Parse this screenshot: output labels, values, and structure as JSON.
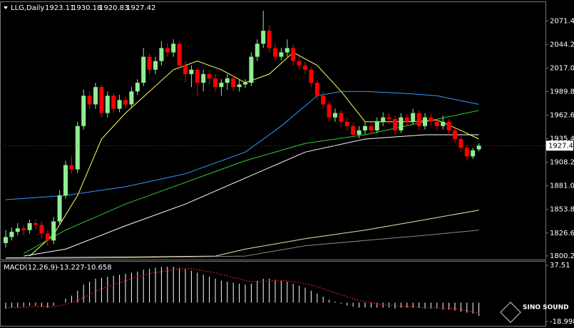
{
  "chart_data": [
    {
      "type": "candlestick",
      "title": "LLG,Daily",
      "up_color": "#90ee90",
      "down_color": "#ff0000",
      "open": [
        1815,
        1822,
        1828,
        1832,
        1830,
        1838,
        1836,
        1826,
        1818,
        1840,
        1870,
        1905,
        1900,
        1950,
        1985,
        1975,
        1995,
        1965,
        1985,
        1970,
        1980,
        1975,
        1990,
        2000,
        2030,
        2015,
        2025,
        2040,
        2035,
        2045,
        2020,
        2010,
        2015,
        2000,
        2010,
        2005,
        1995,
        2000,
        2005,
        1995,
        1998,
        2000,
        2030,
        2045,
        2060,
        2040,
        2030,
        2035,
        2040,
        2025,
        2020,
        2015,
        2000,
        1985,
        1975,
        1960,
        1965,
        1955,
        1950,
        1940,
        1945,
        1950,
        1945,
        1955,
        1960,
        1958,
        1945,
        1960,
        1955,
        1965,
        1950,
        1960,
        1955,
        1950,
        1955,
        1945,
        1935,
        1925,
        1915,
        1923.11
      ],
      "high": [
        1830,
        1833,
        1838,
        1836,
        1842,
        1842,
        1840,
        1830,
        1845,
        1876,
        1910,
        1915,
        1955,
        1992,
        1990,
        2000,
        1998,
        1990,
        1988,
        1986,
        1984,
        1995,
        2004,
        2040,
        2034,
        2030,
        2048,
        2046,
        2050,
        2048,
        2025,
        2020,
        2018,
        2015,
        2014,
        2010,
        2004,
        2010,
        2008,
        2004,
        2004,
        2035,
        2050,
        2083,
        2066,
        2045,
        2040,
        2050,
        2044,
        2030,
        2024,
        2018,
        2004,
        1990,
        1978,
        1970,
        1968,
        1960,
        1954,
        1950,
        1955,
        1954,
        1960,
        1966,
        1965,
        1962,
        1965,
        1964,
        1970,
        1968,
        1965,
        1964,
        1958,
        1962,
        1958,
        1948,
        1938,
        1928,
        1925,
        1930.18
      ],
      "low": [
        1810,
        1818,
        1824,
        1824,
        1826,
        1830,
        1820,
        1812,
        1814,
        1836,
        1866,
        1895,
        1896,
        1946,
        1970,
        1970,
        1960,
        1960,
        1965,
        1966,
        1970,
        1972,
        1986,
        1996,
        2010,
        2010,
        2020,
        2030,
        2030,
        2015,
        2000,
        1995,
        1985,
        1990,
        1998,
        1990,
        1985,
        1992,
        1990,
        1990,
        1994,
        1996,
        2025,
        2040,
        2035,
        2025,
        2026,
        2030,
        2020,
        2015,
        2010,
        1995,
        1980,
        1970,
        1955,
        1955,
        1950,
        1945,
        1938,
        1936,
        1940,
        1940,
        1942,
        1950,
        1952,
        1940,
        1942,
        1950,
        1952,
        1945,
        1946,
        1950,
        1945,
        1946,
        1940,
        1930,
        1920,
        1910,
        1912,
        1920.83
      ],
      "close": [
        1822,
        1828,
        1832,
        1830,
        1838,
        1836,
        1826,
        1818,
        1840,
        1870,
        1905,
        1900,
        1950,
        1985,
        1975,
        1995,
        1965,
        1985,
        1970,
        1980,
        1975,
        1990,
        2000,
        2030,
        2015,
        2025,
        2040,
        2035,
        2045,
        2020,
        2010,
        2015,
        2000,
        2010,
        2005,
        1995,
        2000,
        2005,
        1995,
        1998,
        2000,
        2030,
        2045,
        2060,
        2040,
        2030,
        2035,
        2040,
        2025,
        2020,
        2015,
        2000,
        1985,
        1975,
        1960,
        1965,
        1955,
        1950,
        1940,
        1945,
        1950,
        1945,
        1955,
        1960,
        1958,
        1945,
        1960,
        1955,
        1965,
        1950,
        1960,
        1955,
        1950,
        1955,
        1945,
        1935,
        1925,
        1915,
        1922,
        1927.42
      ],
      "lines": [
        {
          "color": "#ffff66",
          "x": [
            4,
            8,
            12,
            16,
            20,
            24,
            28,
            32,
            36,
            40,
            44,
            48,
            52,
            56,
            60,
            64,
            68,
            72,
            76,
            79
          ],
          "values": [
            1800,
            1825,
            1870,
            1935,
            1965,
            1990,
            2015,
            2025,
            2015,
            2000,
            2010,
            2035,
            2020,
            1990,
            1955,
            1955,
            1955,
            1957,
            1945,
            1935
          ]
        },
        {
          "color": "#3399ff",
          "x": [
            0,
            10,
            20,
            30,
            40,
            46,
            52,
            56,
            60,
            66,
            72,
            79
          ],
          "values": [
            1865,
            1870,
            1880,
            1895,
            1920,
            1950,
            1985,
            1990,
            1990,
            1988,
            1985,
            1975
          ]
        },
        {
          "color": "#33cc33",
          "x": [
            3,
            10,
            20,
            30,
            40,
            50,
            60,
            70,
            79
          ],
          "values": [
            1803,
            1830,
            1860,
            1885,
            1910,
            1930,
            1940,
            1955,
            1968
          ]
        },
        {
          "color": "#ffffff",
          "x": [
            3,
            10,
            20,
            30,
            40,
            50,
            60,
            70,
            79
          ],
          "values": [
            1800,
            1808,
            1835,
            1860,
            1890,
            1920,
            1935,
            1940,
            1940
          ]
        },
        {
          "color": "#f5deb3",
          "x": [
            0,
            20,
            35,
            40,
            50,
            60,
            70,
            79
          ],
          "values": [
            1798,
            1799,
            1800,
            1808,
            1820,
            1830,
            1842,
            1853
          ]
        },
        {
          "color": "#888888",
          "x": [
            0,
            20,
            40,
            50,
            60,
            70,
            79
          ],
          "values": [
            1797,
            1798,
            1800,
            1812,
            1818,
            1824,
            1830
          ]
        }
      ],
      "ylim": [
        1796,
        2093
      ],
      "yticks": [
        {
          "value": 2071.4,
          "label": "2071.40"
        },
        {
          "value": 2044.2,
          "label": "2044.20"
        },
        {
          "value": 2017,
          "label": "2017.00"
        },
        {
          "value": 1989.8,
          "label": "1989.80"
        },
        {
          "value": 1962.6,
          "label": "1962.60"
        },
        {
          "value": 1935.4,
          "label": "1935.40"
        },
        {
          "value": 1908.2,
          "label": "1908.20"
        },
        {
          "value": 1881,
          "label": "1881.00"
        },
        {
          "value": 1853.8,
          "label": "1853.80"
        },
        {
          "value": 1826.6,
          "label": "1826.60"
        },
        {
          "value": 1800.2,
          "label": "1800.20"
        }
      ]
    },
    {
      "type": "macd",
      "title": "MACD(12,26,9)",
      "series": [
        {
          "color": "#ffffff",
          "values": [
            -6,
            -5,
            -5,
            -4,
            -3,
            -3,
            -4,
            -5,
            -3,
            0,
            4,
            7,
            12,
            18,
            21,
            24,
            25,
            26,
            27,
            28,
            29,
            30,
            31,
            33,
            34,
            35,
            36,
            36,
            36,
            35,
            34,
            32,
            30,
            28,
            26,
            24,
            22,
            21,
            20,
            19,
            18,
            19,
            22,
            24,
            24,
            23,
            22,
            21,
            19,
            17,
            15,
            12,
            9,
            6,
            3,
            1,
            -1,
            -3,
            -4,
            -5,
            -5,
            -5,
            -5,
            -5,
            -5,
            -6,
            -5,
            -5,
            -5,
            -5,
            -6,
            -6,
            -6,
            -7,
            -7,
            -8,
            -9,
            -10,
            -11,
            -13.227
          ]
        },
        {
          "color": "#ff2020",
          "values": [
            -5,
            -5,
            -5,
            -5,
            -4,
            -4,
            -4,
            -4,
            -4,
            -3,
            -2,
            0,
            2,
            5,
            8,
            11,
            14,
            16,
            18,
            20,
            22,
            24,
            26,
            27,
            29,
            30,
            31,
            32,
            33,
            34,
            34,
            34,
            33,
            32,
            31,
            30,
            28,
            27,
            25,
            24,
            22,
            21,
            21,
            21,
            22,
            22,
            22,
            22,
            21,
            20,
            19,
            18,
            16,
            14,
            12,
            10,
            8,
            6,
            4,
            2,
            1,
            0,
            -1,
            -2,
            -3,
            -3,
            -4,
            -4,
            -4,
            -5,
            -5,
            -5,
            -5,
            -6,
            -6,
            -6,
            -7,
            -8,
            -9,
            -10.658
          ]
        }
      ],
      "ylim": [
        -18.998,
        37.51
      ],
      "yticks": [
        37.51,
        -18.998
      ]
    }
  ],
  "watermark": "SINO SOUND"
}
